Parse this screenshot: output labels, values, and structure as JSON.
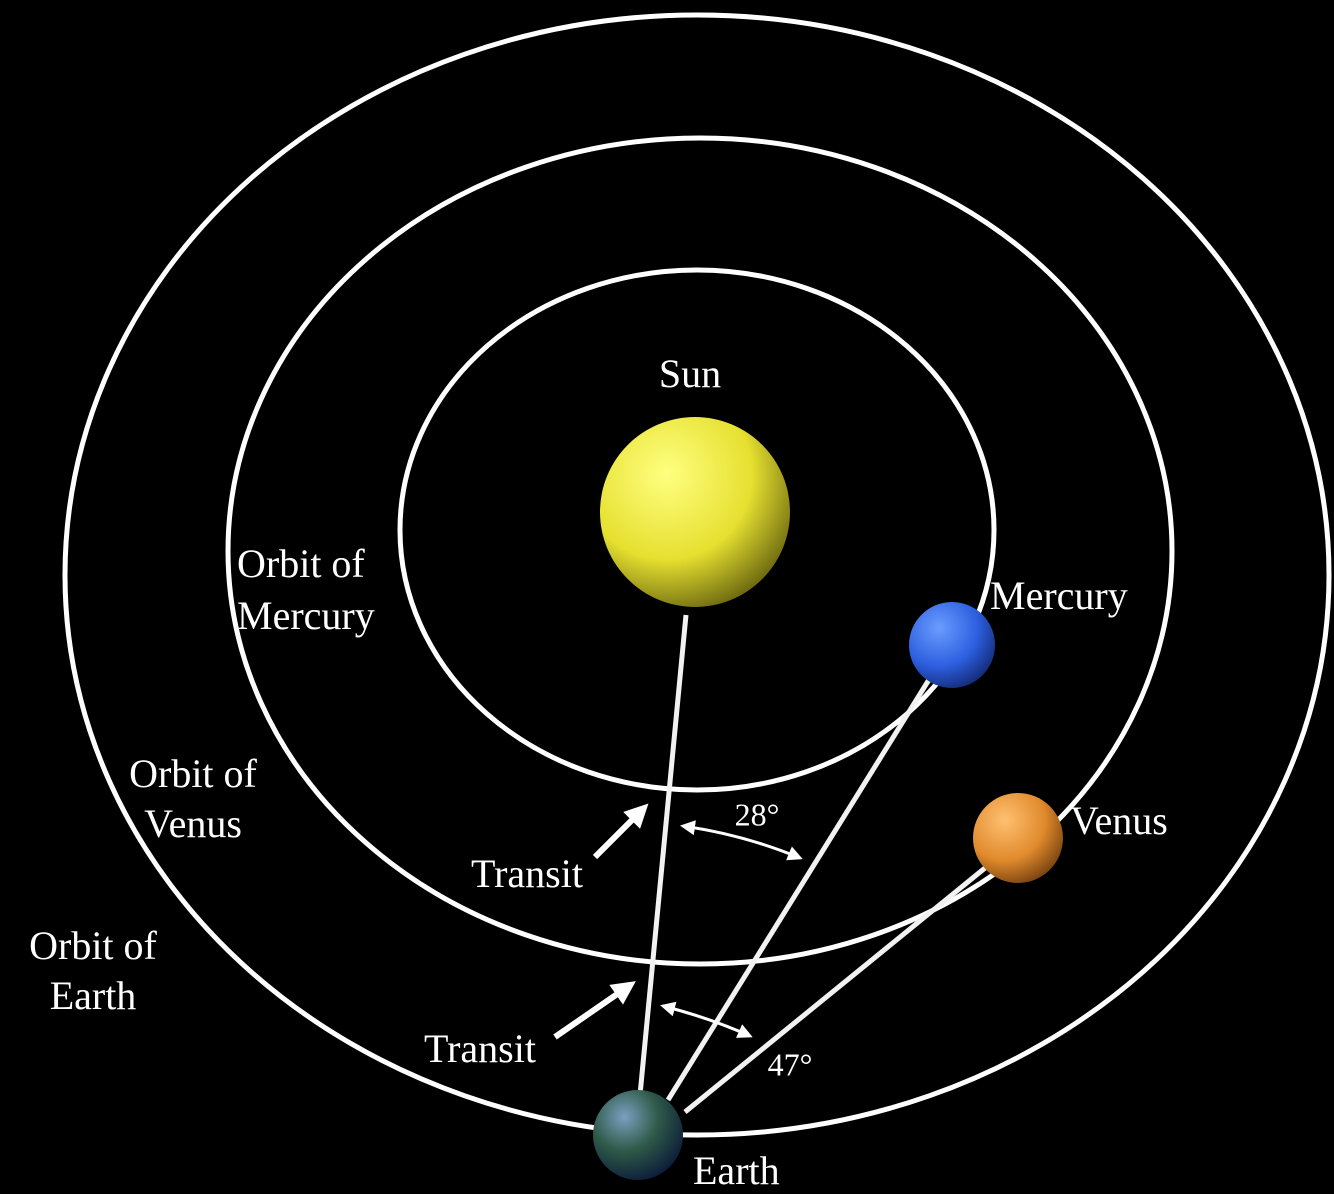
{
  "bodies": [
    {
      "label": "Sun"
    },
    {
      "label": "Mercury"
    },
    {
      "label": "Venus"
    },
    {
      "label": "Earth"
    }
  ],
  "orbits": [
    {
      "lines": [
        "Orbit of",
        "Mercury"
      ]
    },
    {
      "lines": [
        "Orbit of",
        "Venus"
      ]
    },
    {
      "lines": [
        "Orbit of",
        "Earth"
      ]
    }
  ],
  "transits": [
    {
      "label": "Transit"
    },
    {
      "label": "Transit"
    }
  ],
  "angles": [
    {
      "label": "28°"
    },
    {
      "label": "47°"
    }
  ]
}
